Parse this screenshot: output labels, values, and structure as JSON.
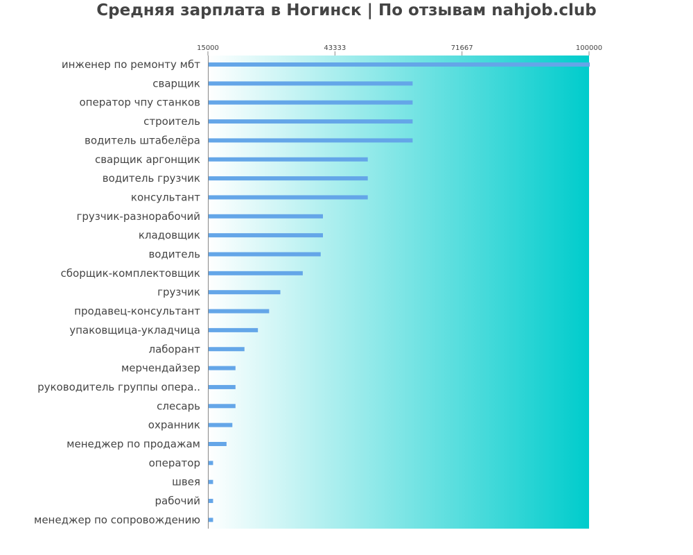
{
  "chart_data": {
    "type": "bar",
    "orientation": "horizontal",
    "title": "Средняя зарплата в Ногинск | По отзывам nahjob.club",
    "xlim": [
      15000,
      100000
    ],
    "ticks": [
      "15000",
      "43333",
      "71667",
      "100000"
    ],
    "tick_values": [
      15000,
      43333,
      71667,
      100000
    ],
    "categories": [
      "инженер по ремонту мбт",
      "сварщик",
      "оператор чпу станков",
      "строитель",
      "водитель штабелёра",
      "сварщик аргонщик",
      "водитель грузчик",
      "консультант",
      "грузчик-разнорабочий",
      "кладовщик",
      "водитель",
      "сборщик-комплектовщик",
      "грузчик",
      "продавец-консультант",
      "упаковщица-укладчица",
      "лаборант",
      "мерчендайзер",
      "руководитель группы опера..",
      "слесарь",
      "охранник",
      "менеджер по продажам",
      "оператор",
      "швея",
      "рабочий",
      "менеджер по сопровождению"
    ],
    "values": [
      100000,
      60500,
      60500,
      60500,
      60500,
      50500,
      50500,
      50500,
      40500,
      40500,
      40000,
      36000,
      31000,
      28500,
      26000,
      23000,
      21000,
      21000,
      21000,
      20300,
      19000,
      16000,
      16000,
      16000,
      16000
    ],
    "colors": {
      "bar": "#64a6e8",
      "gradient_start": "#ffffff",
      "gradient_end": "#00cccc",
      "text": "#444444",
      "axis": "#888888"
    }
  }
}
